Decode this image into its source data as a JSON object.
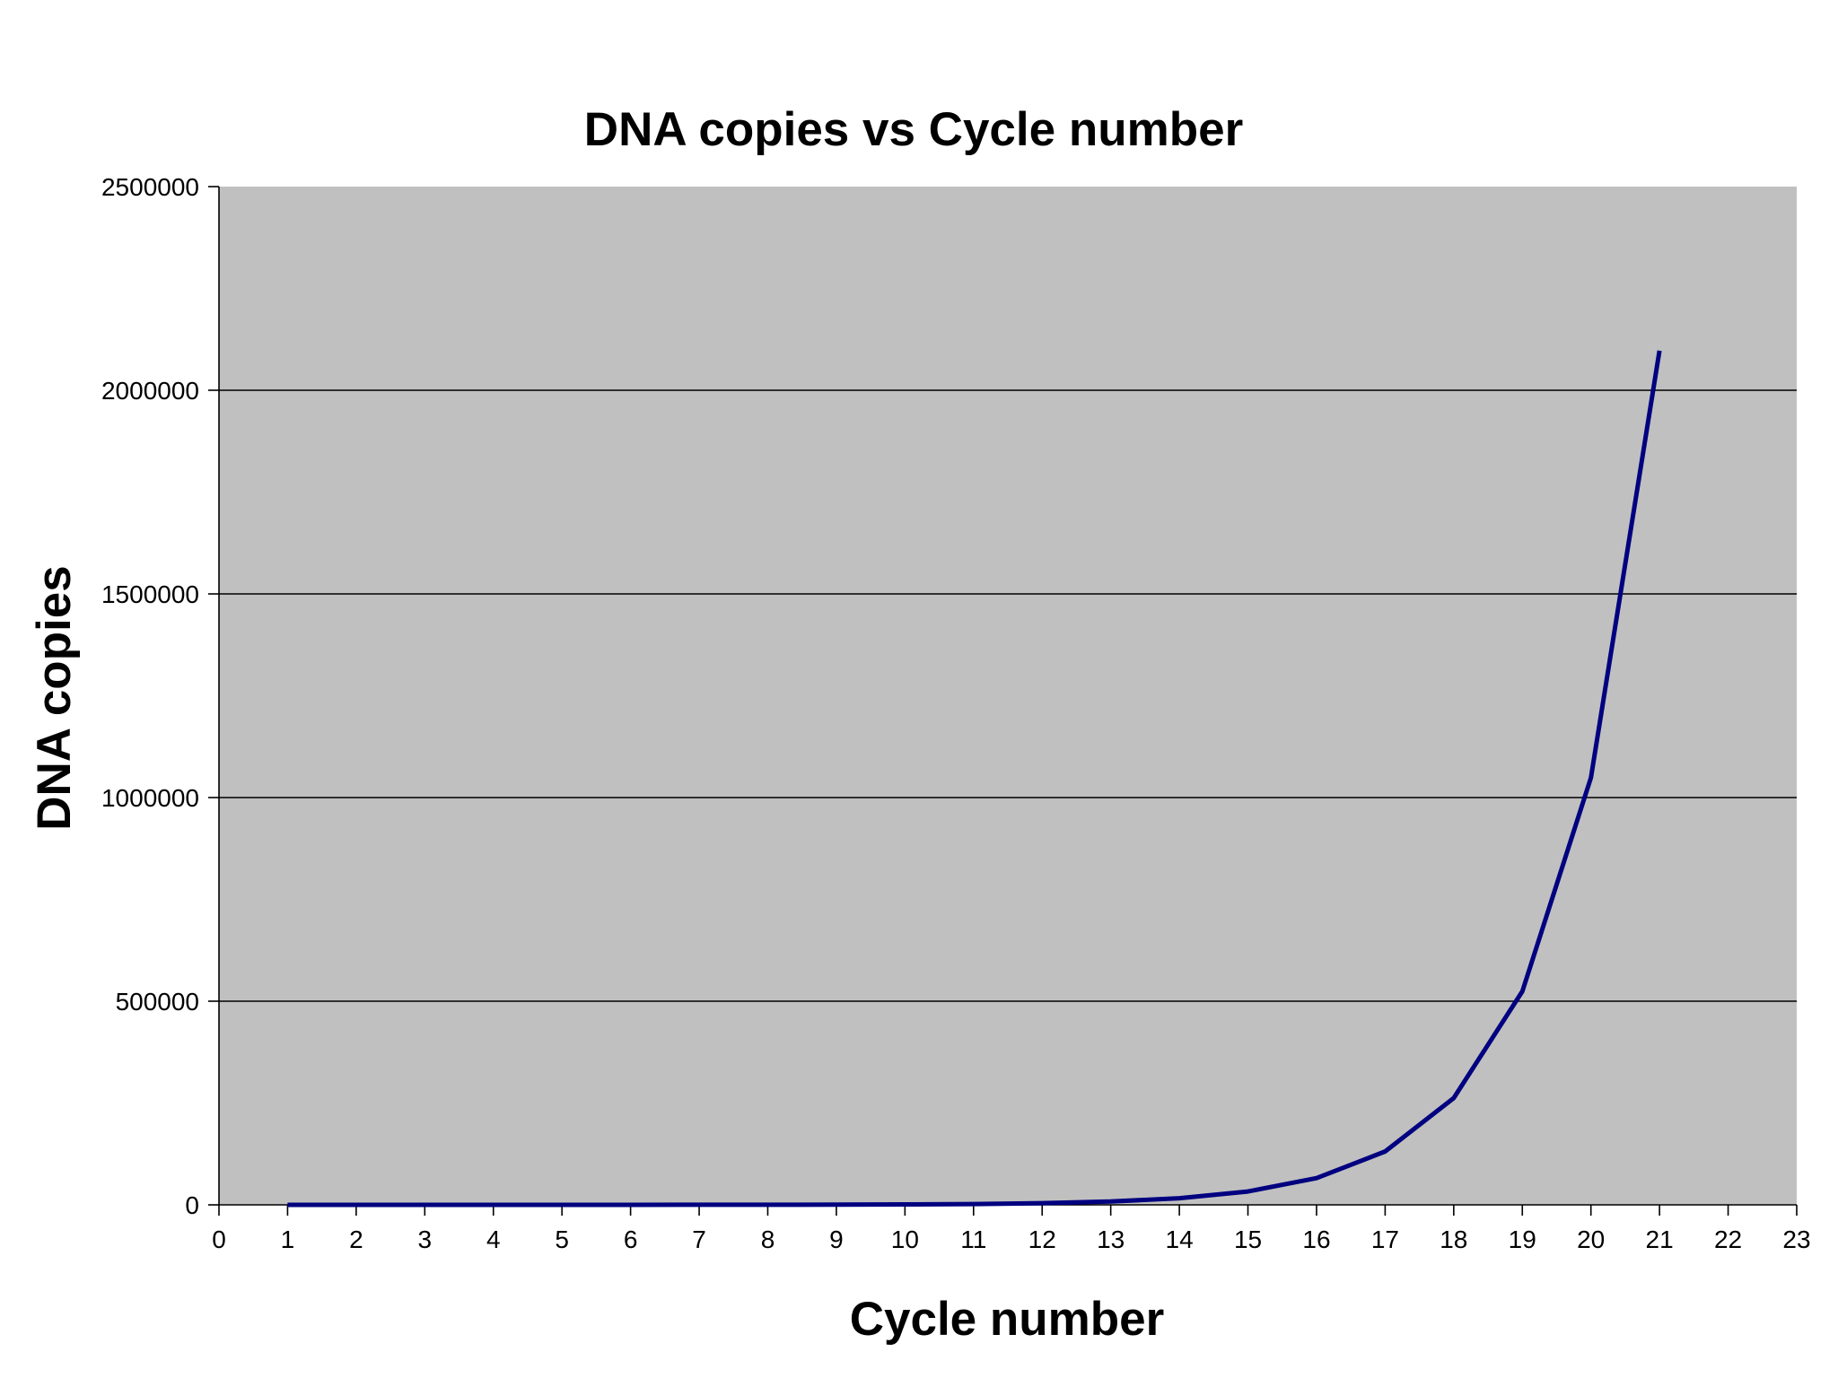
{
  "chart_data": {
    "type": "line",
    "title": "DNA copies vs Cycle number",
    "xlabel": "Cycle number",
    "ylabel": "DNA copies",
    "xlim": [
      0,
      23
    ],
    "ylim": [
      0,
      2500000
    ],
    "x_ticks": [
      0,
      1,
      2,
      3,
      4,
      5,
      6,
      7,
      8,
      9,
      10,
      11,
      12,
      13,
      14,
      15,
      16,
      17,
      18,
      19,
      20,
      21,
      22,
      23
    ],
    "y_ticks": [
      0,
      500000,
      1000000,
      1500000,
      2000000,
      2500000
    ],
    "x_tick_labels": [
      "0",
      "1",
      "2",
      "3",
      "4",
      "5",
      "6",
      "7",
      "8",
      "9",
      "10",
      "11",
      "12",
      "13",
      "14",
      "15",
      "16",
      "17",
      "18",
      "19",
      "20",
      "21",
      "22",
      "23"
    ],
    "y_tick_labels": [
      "0",
      "500000",
      "1000000",
      "1500000",
      "2000000",
      "2500000"
    ],
    "grid": true,
    "legend": "none",
    "series": [
      {
        "x": [
          1,
          2,
          3,
          4,
          5,
          6,
          7,
          8,
          9,
          10,
          11,
          12,
          13,
          14,
          15,
          16,
          17,
          18,
          19,
          20,
          21
        ],
        "values": [
          2,
          4,
          8,
          16,
          32,
          64,
          128,
          256,
          512,
          1024,
          2048,
          4096,
          8192,
          16384,
          32768,
          65536,
          131072,
          262144,
          524288,
          1048576,
          2097152
        ],
        "color": "#000080"
      }
    ],
    "colors": {
      "plot_background": "#c0c0c0",
      "gridline": "#000000",
      "line": "#000080"
    }
  }
}
